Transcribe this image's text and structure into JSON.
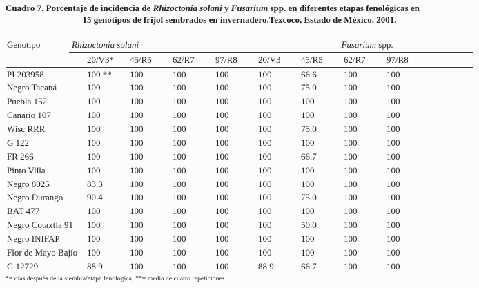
{
  "colors": {
    "ink": "#1f1f1f",
    "paper": "#fcfcfc",
    "rule": "#3a3a3a"
  },
  "caption": {
    "l1_pre": "Cuadro 7. Porcentaje de incidencia de ",
    "l1_species1": "Rhizoctonia solani",
    "l1_mid": " y ",
    "l1_species2": "Fusarium",
    "l1_post": " spp. en diferentes etapas fenológicas en",
    "line2": "15 genotipos de frijol sembrados en invernadero.Texcoco, Estado de México. 2001."
  },
  "table": {
    "genotype_header": "Genotipo",
    "group_rhizoctonia": "Rhizoctonia solani",
    "group_fusarium_italic": "Fusarium",
    "group_fusarium_suffix": " spp.",
    "stage_headers": [
      "20/V3*",
      "45/R5",
      "62/R7",
      "97/R8",
      "20/V3",
      "45/R5",
      "62/R7",
      "97/R8"
    ],
    "rows": [
      {
        "genotype": "PI 203958",
        "values": [
          "100 **",
          "100",
          "100",
          "100",
          "100",
          "66.6",
          "100",
          "100"
        ]
      },
      {
        "genotype": "Negro Tacaná",
        "values": [
          "100",
          "100",
          "100",
          "100",
          "100",
          "75.0",
          "100",
          "100"
        ]
      },
      {
        "genotype": "Puebla 152",
        "values": [
          "100",
          "100",
          "100",
          "100",
          "100",
          "100",
          "100",
          "100"
        ]
      },
      {
        "genotype": "Canario 107",
        "values": [
          "100",
          "100",
          "100",
          "100",
          "100",
          "100",
          "100",
          "100"
        ]
      },
      {
        "genotype": "Wisc RRR",
        "values": [
          "100",
          "100",
          "100",
          "100",
          "100",
          "75.0",
          "100",
          "100"
        ]
      },
      {
        "genotype": "G 122",
        "values": [
          "100",
          "100",
          "100",
          "100",
          "100",
          "100",
          "100",
          "100"
        ]
      },
      {
        "genotype": "FR 266",
        "values": [
          "100",
          "100",
          "100",
          "100",
          "100",
          "66.7",
          "100",
          "100"
        ]
      },
      {
        "genotype": "Pinto Villa",
        "values": [
          "100",
          "100",
          "100",
          "100",
          "100",
          "100",
          "100",
          "100"
        ]
      },
      {
        "genotype": "Negro 8025",
        "values": [
          "83.3",
          "100",
          "100",
          "100",
          "100",
          "100",
          "100",
          "100"
        ]
      },
      {
        "genotype": "Negro Durango",
        "values": [
          "90.4",
          "100",
          "100",
          "100",
          "100",
          "75.0",
          "100",
          "100"
        ]
      },
      {
        "genotype": "BAT 477",
        "values": [
          "100",
          "100",
          "100",
          "100",
          "100",
          "100",
          "100",
          "100"
        ]
      },
      {
        "genotype": "Negro Cotaxtla 91",
        "values": [
          "100",
          "100",
          "100",
          "100",
          "100",
          "50.0",
          "100",
          "100"
        ]
      },
      {
        "genotype": "Negro INIFAP",
        "values": [
          "100",
          "100",
          "100",
          "100",
          "100",
          "100",
          "100",
          "100"
        ]
      },
      {
        "genotype": "Flor de Mayo Bajío",
        "values": [
          "100",
          "100",
          "100",
          "100",
          "100",
          "100",
          "100",
          "100"
        ]
      },
      {
        "genotype": "G 12729",
        "values": [
          "88.9",
          "100",
          "100",
          "100",
          "88.9",
          "66.7",
          "100",
          "100"
        ]
      }
    ]
  },
  "footnote": "*= días después de la siembra/etapa fenológica; **= media de cuatro repeticiones."
}
